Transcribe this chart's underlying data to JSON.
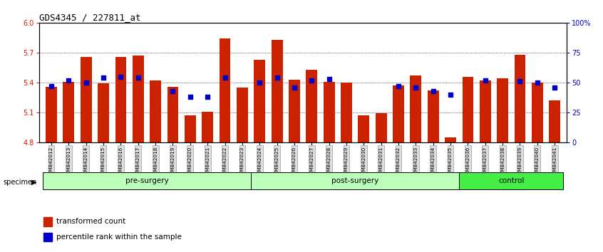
{
  "title": "GDS4345 / 227811_at",
  "samples": [
    "GSM842012",
    "GSM842013",
    "GSM842014",
    "GSM842015",
    "GSM842016",
    "GSM842017",
    "GSM842018",
    "GSM842019",
    "GSM842020",
    "GSM842021",
    "GSM842022",
    "GSM842023",
    "GSM842024",
    "GSM842025",
    "GSM842026",
    "GSM842027",
    "GSM842028",
    "GSM842029",
    "GSM842030",
    "GSM842031",
    "GSM842032",
    "GSM842033",
    "GSM842034",
    "GSM842035",
    "GSM842036",
    "GSM842037",
    "GSM842038",
    "GSM842039",
    "GSM842040",
    "GSM842041"
  ],
  "red_values": [
    5.36,
    5.41,
    5.66,
    5.39,
    5.66,
    5.67,
    5.42,
    5.36,
    5.07,
    5.11,
    5.84,
    5.35,
    5.63,
    5.83,
    5.43,
    5.53,
    5.41,
    5.4,
    5.07,
    5.09,
    5.37,
    5.47,
    5.32,
    4.85,
    5.46,
    5.42,
    5.44,
    5.68,
    5.4,
    5.22
  ],
  "blue_values": [
    47,
    52,
    50,
    54,
    55,
    54,
    null,
    43,
    38,
    38,
    54,
    null,
    50,
    54,
    46,
    52,
    53,
    null,
    null,
    null,
    47,
    46,
    43,
    40,
    null,
    52,
    null,
    51,
    50,
    46
  ],
  "groups": [
    {
      "label": "pre-surgery",
      "start": 0,
      "end": 11,
      "color": "#bbffbb"
    },
    {
      "label": "post-surgery",
      "start": 12,
      "end": 23,
      "color": "#bbffbb"
    },
    {
      "label": "control",
      "start": 24,
      "end": 29,
      "color": "#44ee44"
    }
  ],
  "ylim_left": [
    4.8,
    6.0
  ],
  "yticks_left": [
    4.8,
    5.1,
    5.4,
    5.7,
    6.0
  ],
  "ylim_right": [
    0,
    100
  ],
  "yticks_right": [
    0,
    25,
    50,
    75,
    100
  ],
  "ytick_labels_right": [
    "0",
    "25",
    "50",
    "75",
    "100%"
  ],
  "bar_color": "#cc2200",
  "dot_color": "#0000cc",
  "bg_color": "#ffffff",
  "bar_bottom": 4.8,
  "legend_items": [
    {
      "color": "#cc2200",
      "label": "transformed count"
    },
    {
      "color": "#0000cc",
      "label": "percentile rank within the sample"
    }
  ]
}
